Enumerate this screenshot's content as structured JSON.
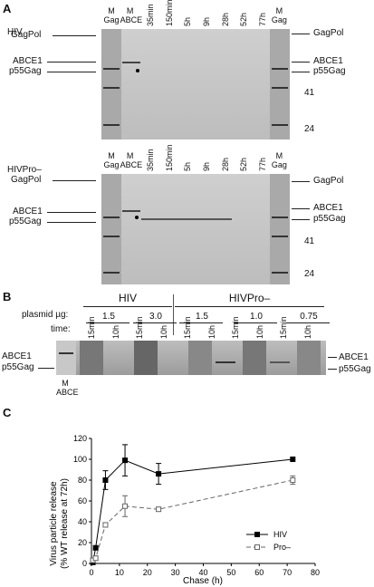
{
  "panelA": {
    "label": "A",
    "gel1": {
      "title": "HIV",
      "lanes": [
        "M Gag",
        "M ABCE",
        "35min",
        "150min",
        "5h",
        "9h",
        "28h",
        "52h",
        "77h",
        "M Gag"
      ],
      "left_labels": [
        "GagPol",
        "ABCE1",
        "p55Gag"
      ],
      "right_labels": [
        "GagPol",
        "ABCE1",
        "p55Gag",
        "41",
        "24"
      ]
    },
    "gel2": {
      "title": "HIVPro–",
      "lanes": [
        "M Gag",
        "M ABCE",
        "35min",
        "150min",
        "5h",
        "9h",
        "28h",
        "52h",
        "77h",
        "M Gag"
      ],
      "left_labels": [
        "GagPol",
        "ABCE1",
        "p55Gag"
      ],
      "right_labels": [
        "GagPol",
        "ABCE1",
        "p55Gag",
        "41",
        "24"
      ]
    }
  },
  "panelB": {
    "label": "B",
    "groups": [
      "HIV",
      "HIVPro–"
    ],
    "plasmid_label": "plasmid µg:",
    "time_label": "time:",
    "plasmid_values": [
      "1.5",
      "3.0",
      "1.5",
      "1.0",
      "0.75"
    ],
    "times": [
      "15min",
      "10h",
      "15min",
      "10h",
      "15min",
      "10h",
      "15min",
      "10h",
      "15min",
      "10h"
    ],
    "left_labels": [
      "ABCE1",
      "p55Gag"
    ],
    "right_labels": [
      "ABCE1",
      "p55Gag"
    ],
    "marker": "M ABCE"
  },
  "panelC": {
    "label": "C"
  },
  "chart_data": {
    "type": "line",
    "xlabel": "Chase (h)",
    "ylabel": "Virus particle release\n(% WT release at 72h)",
    "xlim": [
      0,
      80
    ],
    "ylim": [
      0,
      120
    ],
    "xticks": [
      0,
      10,
      20,
      30,
      40,
      50,
      60,
      70,
      80
    ],
    "yticks": [
      0,
      20,
      40,
      60,
      80,
      100,
      120
    ],
    "legend_position": "bottom-right",
    "series": [
      {
        "name": "HIV",
        "marker": "filled-square",
        "line": "solid",
        "x": [
          0.5,
          1.5,
          5,
          12,
          24,
          72
        ],
        "y": [
          1,
          15,
          80,
          99,
          86,
          100
        ],
        "err": [
          0,
          2,
          9,
          15,
          10,
          0
        ]
      },
      {
        "name": "Pro–",
        "marker": "open-square",
        "line": "dashed",
        "x": [
          0.5,
          1.5,
          5,
          12,
          24,
          72
        ],
        "y": [
          3,
          5,
          37,
          55,
          52,
          80
        ],
        "err": [
          0,
          2,
          2,
          10,
          2,
          4
        ]
      }
    ]
  }
}
